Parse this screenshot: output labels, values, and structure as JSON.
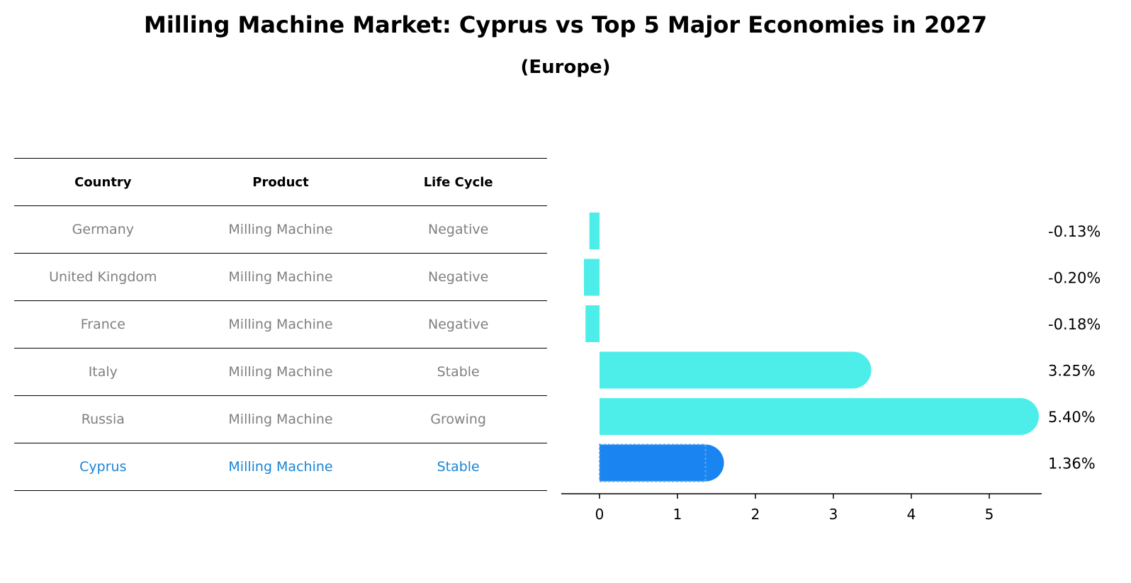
{
  "header": {
    "title": "Milling Machine Market: Cyprus vs Top 5 Major Economies in 2027",
    "subtitle": "(Europe)"
  },
  "table": {
    "columns": [
      "Country",
      "Product",
      "Life Cycle"
    ],
    "rows": [
      {
        "country": "Germany",
        "product": "Milling Machine",
        "life_cycle": "Negative"
      },
      {
        "country": "United Kingdom",
        "product": "Milling Machine",
        "life_cycle": "Negative"
      },
      {
        "country": "France",
        "product": "Milling Machine",
        "life_cycle": "Negative"
      },
      {
        "country": "Italy",
        "product": "Milling Machine",
        "life_cycle": "Stable"
      },
      {
        "country": "Russia",
        "product": "Milling Machine",
        "life_cycle": "Growing"
      },
      {
        "country": "Cyprus",
        "product": "Milling Machine",
        "life_cycle": "Stable"
      }
    ]
  },
  "colors": {
    "bar": "#4deeea",
    "highlight_bar": "#1a84f0",
    "highlight_text": "#1a84d6",
    "muted_text": "#808080"
  },
  "chart_data": {
    "type": "bar",
    "orientation": "horizontal",
    "categories": [
      "Germany",
      "United Kingdom",
      "France",
      "Italy",
      "Russia",
      "Cyprus"
    ],
    "values": [
      -0.13,
      -0.2,
      -0.18,
      3.25,
      5.4,
      1.36
    ],
    "value_labels": [
      "-0.13%",
      "-0.20%",
      "-0.18%",
      "3.25%",
      "5.40%",
      "1.36%"
    ],
    "highlight_index": 5,
    "xticks": [
      "0",
      "1",
      "2",
      "3",
      "4",
      "5"
    ],
    "xlim": [
      -0.48,
      5.65
    ]
  }
}
